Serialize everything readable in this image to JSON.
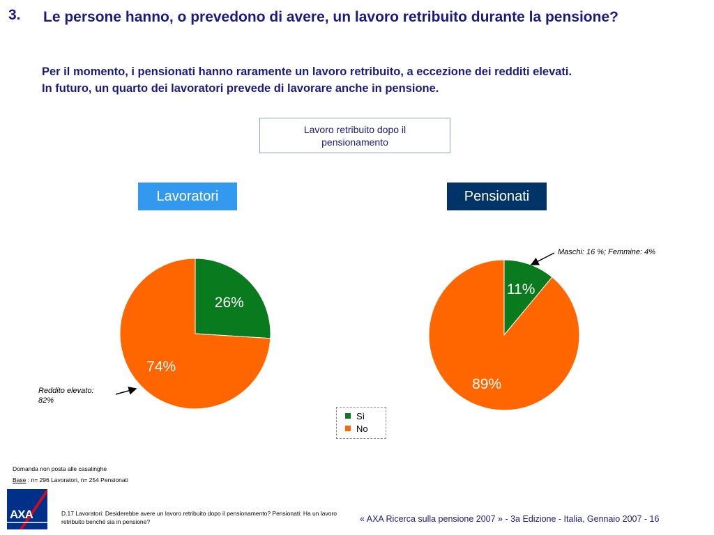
{
  "header": {
    "question_number": "3.",
    "question_text": "Le persone hanno, o prevedono di avere, un lavoro retribuito durante la pensione?",
    "subtitle_line1": "Per il momento, i pensionati hanno raramente un lavoro retribuito, a eccezione dei redditi elevati.",
    "subtitle_line2": "In futuro, un quarto dei lavoratori prevede di lavorare anche in pensione."
  },
  "chart_title": "Lavoro retribuito dopo il pensionamento",
  "colors": {
    "si": "#0a7a1f",
    "no": "#ff6600",
    "label_text": "#ffffff",
    "lavoratori_tag": "#3399ee",
    "pensionati_tag": "#003366"
  },
  "chart_data": [
    {
      "type": "pie",
      "title": "Lavoratori",
      "categories": [
        "Sì",
        "No"
      ],
      "values": [
        26,
        74
      ],
      "labels": [
        "26%",
        "74%"
      ],
      "annotation": "Reddito elevato: 82%"
    },
    {
      "type": "pie",
      "title": "Pensionati",
      "categories": [
        "Sì",
        "No"
      ],
      "values": [
        11,
        89
      ],
      "labels": [
        "11%",
        "89%"
      ],
      "annotation": "Maschi: 16 %; Femmine: 4%"
    }
  ],
  "legend": {
    "items": [
      {
        "label": "Sì"
      },
      {
        "label": "No"
      }
    ]
  },
  "notes": {
    "lavoratori_line1": "Reddito elevato:",
    "lavoratori_line2": "82%",
    "pensionati": "Maschi: 16 %; Femmine: 4%"
  },
  "footer": {
    "note": "Domanda non posta alle casalinghe",
    "base_label": "Base",
    "base_text": ": n= 296  Lavoratori, n= 254  Pensionati",
    "source": "D.17 Lavoratori: Desiderebbe avere un lavoro retribuito dopo il pensionamento? Pensionati: Ha un lavoro retribuito benché sia in pensione?",
    "logo_text": "AXA",
    "copyright": "« AXA Ricerca sulla pensione 2007 » - 3a Edizione - Italia, Gennaio 2007 - 16"
  }
}
